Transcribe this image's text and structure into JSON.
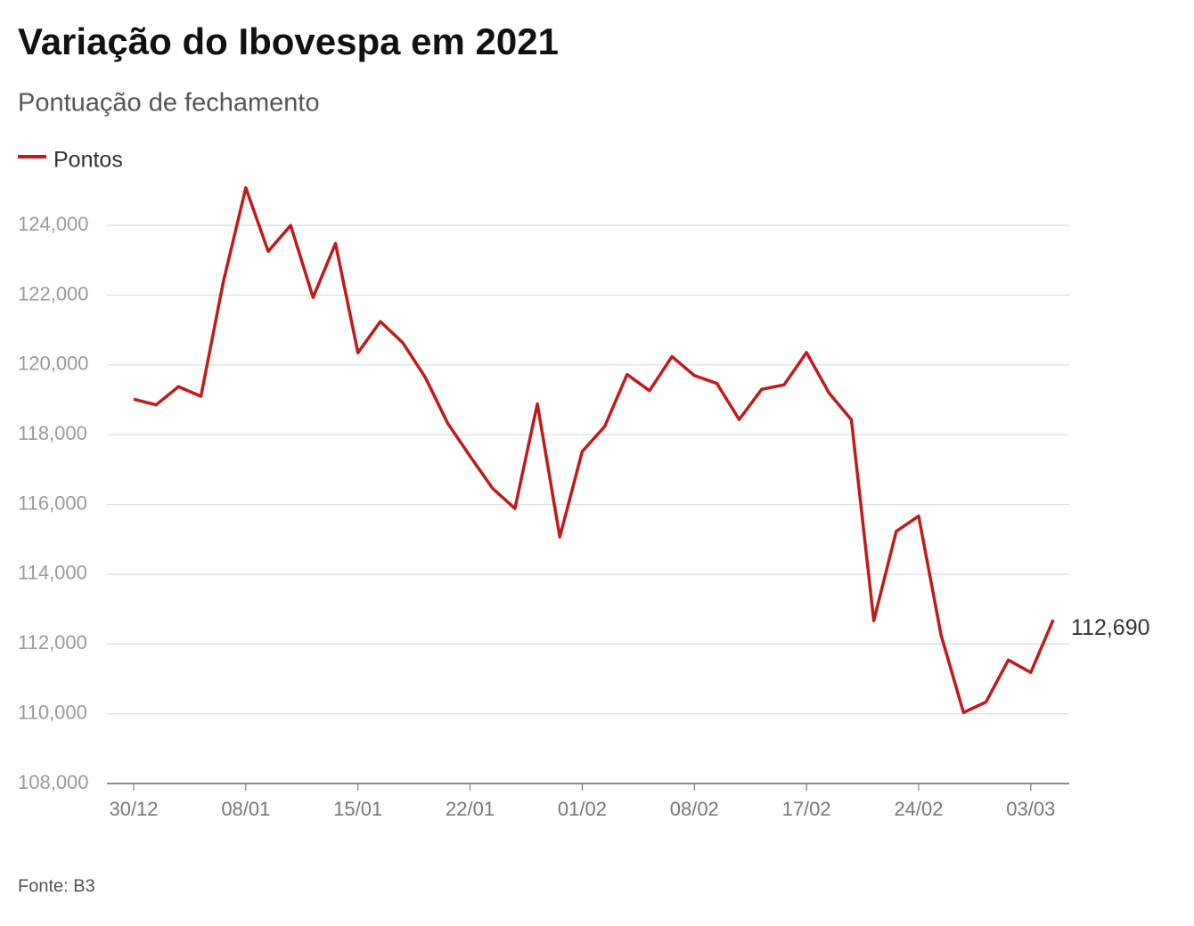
{
  "chart_data": {
    "type": "line",
    "title": "Variação do Ibovespa em 2021",
    "subtitle": "Pontuação de fechamento",
    "source": "Fonte: B3",
    "categories": [
      "30/12",
      null,
      null,
      null,
      null,
      "08/01",
      null,
      null,
      null,
      null,
      "15/01",
      null,
      null,
      null,
      null,
      "22/01",
      null,
      null,
      null,
      null,
      "01/02",
      null,
      null,
      null,
      null,
      "08/02",
      null,
      null,
      null,
      null,
      "17/02",
      null,
      null,
      null,
      null,
      "24/02",
      null,
      null,
      null,
      null,
      "03/03",
      null
    ],
    "series": [
      {
        "name": "Pontos",
        "color": "#c01a1a",
        "values": [
          119017,
          118855,
          119376,
          119100,
          122386,
          125077,
          123255,
          123998,
          121933,
          123480,
          120349,
          121242,
          120636,
          119646,
          118329,
          117381,
          116464,
          115882,
          118883,
          115068,
          117518,
          118234,
          119725,
          119261,
          120240,
          119696,
          119471,
          118435,
          119300,
          119429,
          120356,
          119199,
          118430,
          112668,
          115227,
          115668,
          112256,
          110035,
          110335,
          111540,
          111184,
          112690
        ],
        "value_labels": [
          null,
          null,
          null,
          null,
          null,
          null,
          null,
          null,
          null,
          null,
          null,
          null,
          null,
          null,
          null,
          null,
          null,
          null,
          null,
          null,
          null,
          null,
          null,
          null,
          null,
          null,
          null,
          null,
          null,
          null,
          null,
          null,
          null,
          null,
          null,
          null,
          null,
          null,
          null,
          null,
          null,
          "112,690"
        ]
      }
    ],
    "ylim": [
      108000,
      125100
    ],
    "yticks": [
      {
        "value": 108000,
        "label": "108,000"
      },
      {
        "value": 110000,
        "label": "110,000"
      },
      {
        "value": 112000,
        "label": "112,000"
      },
      {
        "value": 114000,
        "label": "114,000"
      },
      {
        "value": 116000,
        "label": "116,000"
      },
      {
        "value": 118000,
        "label": "118,000"
      },
      {
        "value": 120000,
        "label": "120,000"
      },
      {
        "value": 122000,
        "label": "122,000"
      },
      {
        "value": 124000,
        "label": "124,000"
      }
    ],
    "grid": true
  }
}
